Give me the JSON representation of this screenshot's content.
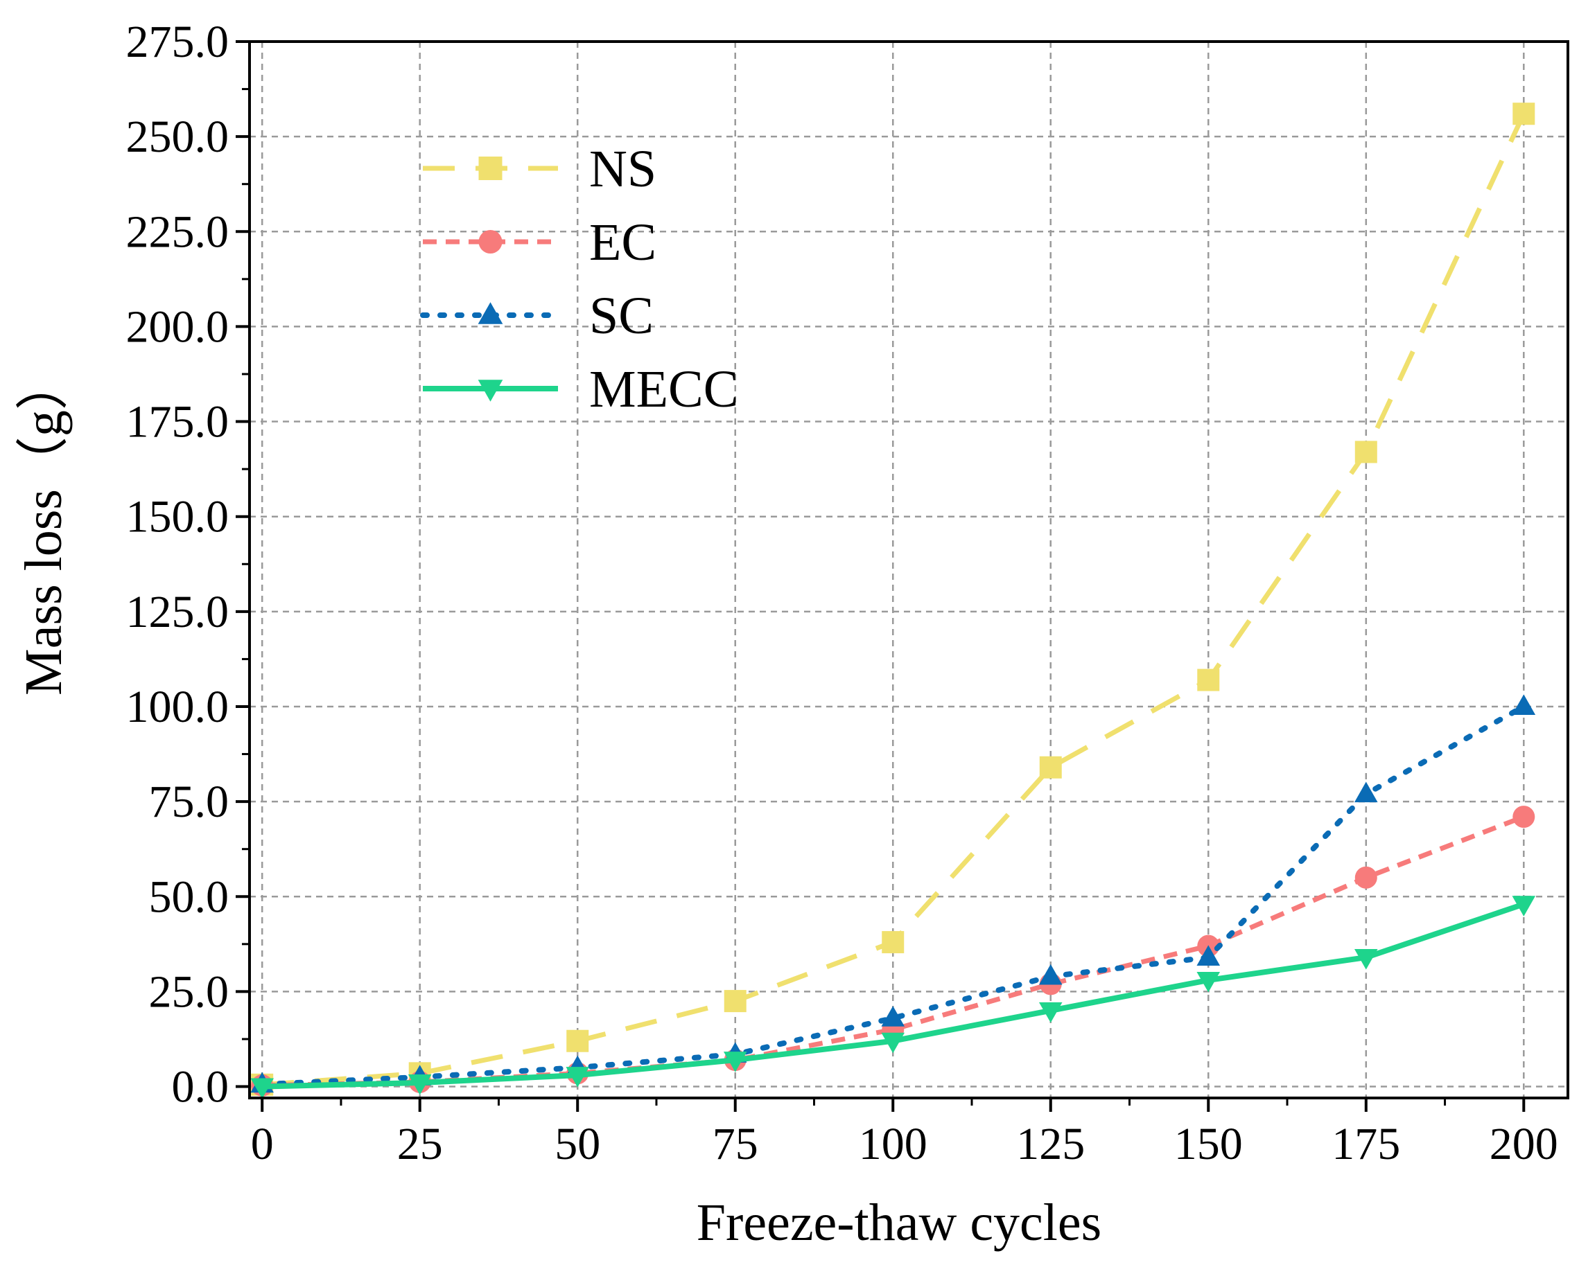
{
  "chart_data": {
    "type": "line",
    "title": "",
    "xlabel": "Freeze-thaw cycles",
    "ylabel": "Mass loss（g）",
    "x": [
      0,
      25,
      50,
      75,
      100,
      125,
      150,
      175,
      200
    ],
    "xlim": [
      -2,
      207
    ],
    "ylim": [
      -3,
      275
    ],
    "xticks": [
      0,
      25,
      50,
      75,
      100,
      125,
      150,
      175,
      200
    ],
    "xtick_labels": [
      "0",
      "25",
      "50",
      "75",
      "100",
      "125",
      "150",
      "175",
      "200"
    ],
    "yticks": [
      0,
      25,
      50,
      75,
      100,
      125,
      150,
      175,
      200,
      225,
      250,
      275
    ],
    "ytick_labels": [
      "0.0",
      "25.0",
      "50.0",
      "75.0",
      "100.0",
      "125.0",
      "150.0",
      "175.0",
      "200.0",
      "225.0",
      "250.0",
      "275.0"
    ],
    "grid": true,
    "legend_position": "top-left",
    "series": [
      {
        "name": "NS",
        "values": [
          0.5,
          3.5,
          12,
          22.5,
          38,
          84,
          107,
          167,
          256
        ],
        "color": "#F0E06E",
        "line_style": "dashed",
        "marker": "square"
      },
      {
        "name": "EC",
        "values": [
          0.3,
          1.2,
          3.5,
          7,
          15,
          27,
          37,
          55,
          71
        ],
        "color": "#F77B7B",
        "line_style": "short-dash",
        "marker": "circle"
      },
      {
        "name": "SC",
        "values": [
          0.6,
          2.5,
          5,
          8.5,
          18,
          29,
          34,
          77,
          100
        ],
        "color": "#0A6BB5",
        "line_style": "dotted",
        "marker": "triangle-up"
      },
      {
        "name": "MECC",
        "values": [
          0,
          1,
          3,
          7,
          12,
          20,
          28,
          34,
          48
        ],
        "color": "#1ED48C",
        "line_style": "solid",
        "marker": "triangle-down"
      }
    ]
  }
}
